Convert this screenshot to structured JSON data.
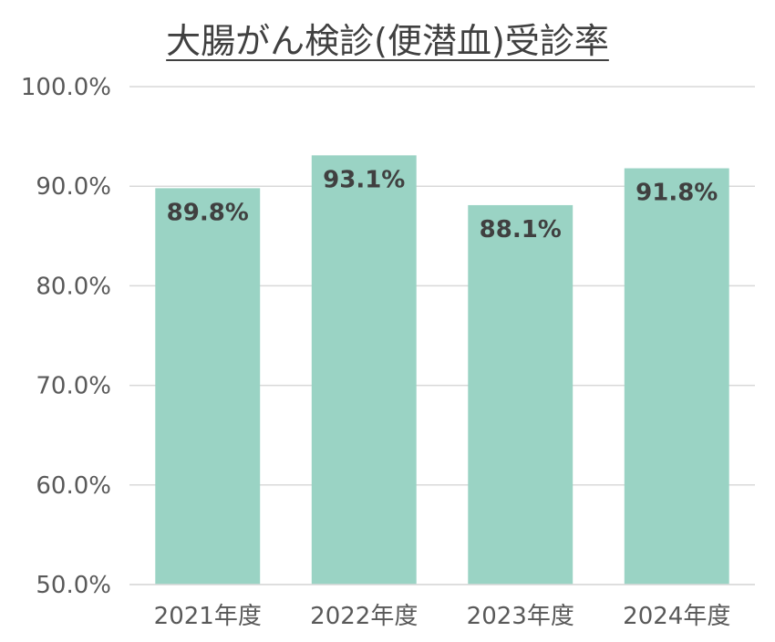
{
  "chart_data": {
    "type": "bar",
    "title": "大腸がん検診(便潜血)受診率",
    "categories": [
      "2021年度",
      "2022年度",
      "2023年度",
      "2024年度"
    ],
    "values": [
      89.8,
      93.1,
      88.1,
      91.8
    ],
    "data_labels": [
      "89.8%",
      "93.1%",
      "88.1%",
      "91.8%"
    ],
    "ylim": [
      50,
      100
    ],
    "y_ticks": [
      50,
      60,
      70,
      80,
      90,
      100
    ],
    "y_tick_labels": [
      "50.0%",
      "60.0%",
      "70.0%",
      "80.0%",
      "90.0%",
      "100.0%"
    ],
    "grid": true,
    "legend": "none",
    "bar_color": "#9ad3c4",
    "grid_color": "#d9d9d9"
  }
}
